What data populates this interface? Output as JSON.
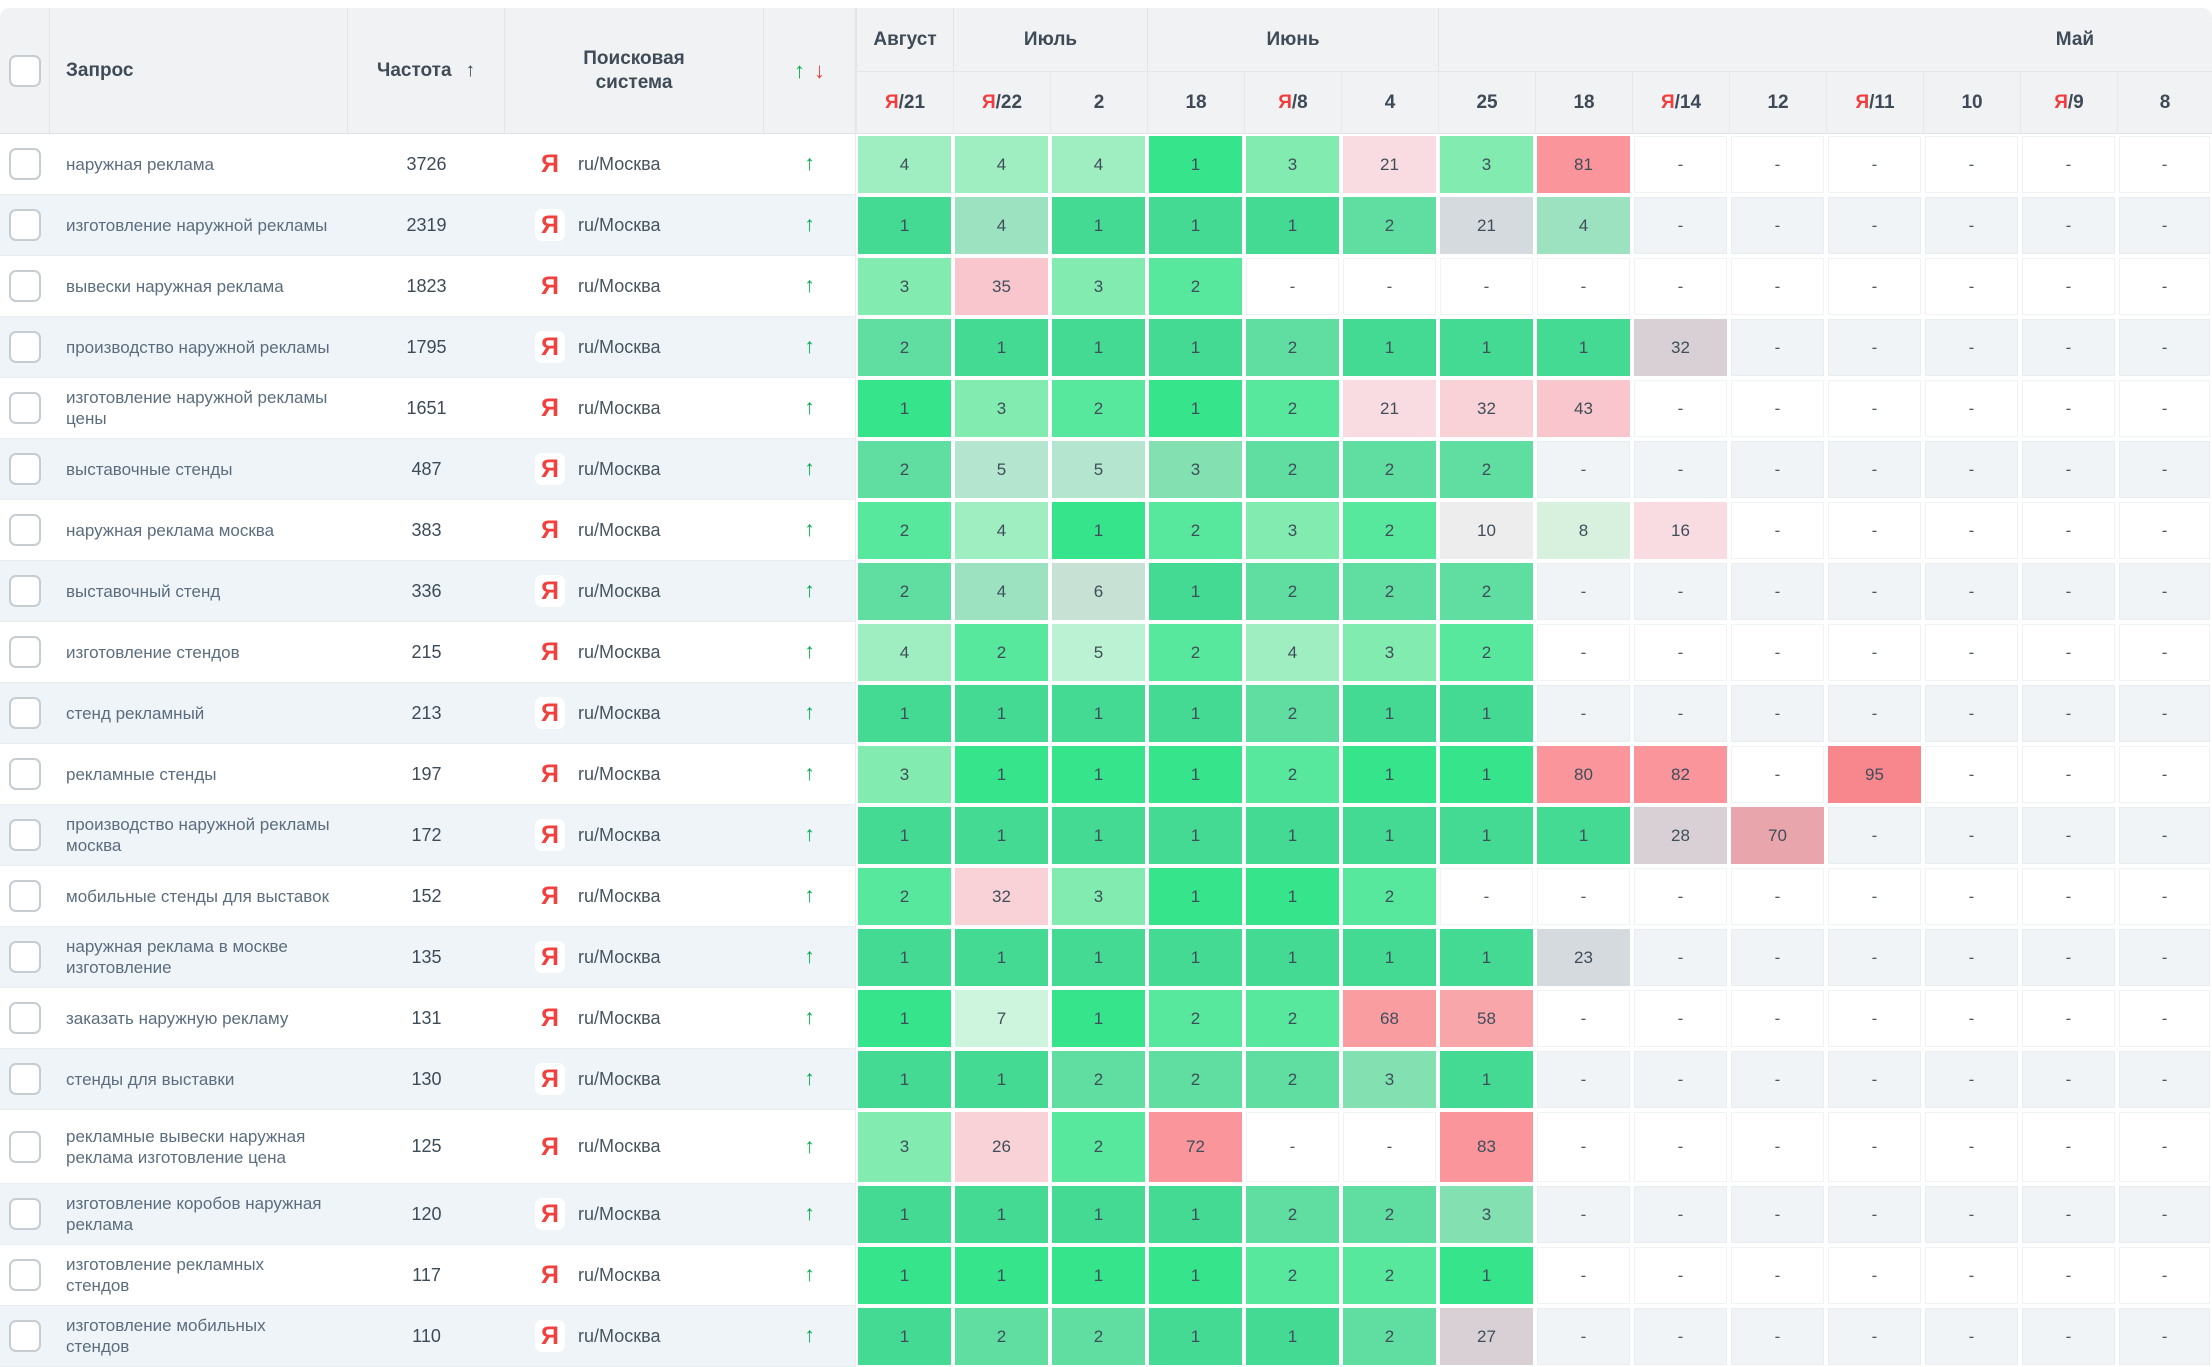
{
  "columns": {
    "query": "Запрос",
    "frequency": "Частота",
    "frequency_sort_icon": "↑",
    "engine": "Поисковая система",
    "trend_up_icon": "↑",
    "trend_down_icon": "↓"
  },
  "month_groups": [
    {
      "label": "Август",
      "span": 1
    },
    {
      "label": "Июль",
      "span": 2
    },
    {
      "label": "Июнь",
      "span": 3
    },
    {
      "label": "Май",
      "span": 8
    }
  ],
  "day_columns": [
    {
      "icon": "Я",
      "label": "/21"
    },
    {
      "icon": "Я",
      "label": "/22"
    },
    {
      "label": "2"
    },
    {
      "label": "18"
    },
    {
      "icon": "Я",
      "label": "/8"
    },
    {
      "label": "4"
    },
    {
      "label": "25"
    },
    {
      "label": "18"
    },
    {
      "icon": "Я",
      "label": "/14"
    },
    {
      "label": "12"
    },
    {
      "icon": "Я",
      "label": "/11"
    },
    {
      "label": "10"
    },
    {
      "icon": "Я",
      "label": "/9"
    },
    {
      "label": "8"
    }
  ],
  "palette": {
    "g1": "#36e48c",
    "g2": "#58e89d",
    "g3": "#81ebb0",
    "g4": "#9feec2",
    "g5": "#bbf2d3",
    "g6": "#d2ecda",
    "g7": "#cdf4dc",
    "g8": "#d8f0de",
    "g10": "#ededee",
    "gy": "#e3e4e6",
    "tp": "#e6d8d9",
    "p1": "#f9dce1",
    "p2": "#f9d2d7",
    "p3": "#f8c6cc",
    "s1": "#f9a6aa",
    "s2": "#f99da1",
    "s3": "#f9959b",
    "s4": "#f8868d"
  },
  "engine_row": {
    "icon": "Я",
    "region": "ru/Москва"
  },
  "rows": [
    {
      "query": "наружная реклама",
      "frequency": "3726",
      "trend": "up",
      "positions": [
        {
          "v": "4",
          "c": "g4"
        },
        {
          "v": "4",
          "c": "g4"
        },
        {
          "v": "4",
          "c": "g4"
        },
        {
          "v": "1",
          "c": "g1"
        },
        {
          "v": "3",
          "c": "g3"
        },
        {
          "v": "21",
          "c": "p1"
        },
        {
          "v": "3",
          "c": "g3"
        },
        {
          "v": "81",
          "c": "s3"
        },
        {
          "v": "-"
        },
        {
          "v": "-"
        },
        {
          "v": "-"
        },
        {
          "v": "-"
        },
        {
          "v": "-"
        },
        {
          "v": "-"
        }
      ]
    },
    {
      "query": "изготовление наружной рекламы",
      "frequency": "2319",
      "trend": "up",
      "positions": [
        {
          "v": "1",
          "c": "g1"
        },
        {
          "v": "4",
          "c": "g4"
        },
        {
          "v": "1",
          "c": "g1"
        },
        {
          "v": "1",
          "c": "g1"
        },
        {
          "v": "1",
          "c": "g1"
        },
        {
          "v": "2",
          "c": "g2"
        },
        {
          "v": "21",
          "c": "gy"
        },
        {
          "v": "4",
          "c": "g4"
        },
        {
          "v": "-"
        },
        {
          "v": "-"
        },
        {
          "v": "-"
        },
        {
          "v": "-"
        },
        {
          "v": "-"
        },
        {
          "v": "-"
        }
      ]
    },
    {
      "query": "вывески наружная реклама",
      "frequency": "1823",
      "trend": "up",
      "positions": [
        {
          "v": "3",
          "c": "g3"
        },
        {
          "v": "35",
          "c": "p3"
        },
        {
          "v": "3",
          "c": "g3"
        },
        {
          "v": "2",
          "c": "g2"
        },
        {
          "v": "-"
        },
        {
          "v": "-"
        },
        {
          "v": "-"
        },
        {
          "v": "-"
        },
        {
          "v": "-"
        },
        {
          "v": "-"
        },
        {
          "v": "-"
        },
        {
          "v": "-"
        },
        {
          "v": "-"
        },
        {
          "v": "-"
        }
      ]
    },
    {
      "query": "производство наружной рекламы",
      "frequency": "1795",
      "trend": "up",
      "positions": [
        {
          "v": "2",
          "c": "g2"
        },
        {
          "v": "1",
          "c": "g1"
        },
        {
          "v": "1",
          "c": "g1"
        },
        {
          "v": "1",
          "c": "g1"
        },
        {
          "v": "2",
          "c": "g2"
        },
        {
          "v": "1",
          "c": "g1"
        },
        {
          "v": "1",
          "c": "g1"
        },
        {
          "v": "1",
          "c": "g1"
        },
        {
          "v": "32",
          "c": "tp"
        },
        {
          "v": "-"
        },
        {
          "v": "-"
        },
        {
          "v": "-"
        },
        {
          "v": "-"
        },
        {
          "v": "-"
        }
      ]
    },
    {
      "query": "изготовление наружной рекламы цены",
      "frequency": "1651",
      "trend": "up",
      "positions": [
        {
          "v": "1",
          "c": "g1"
        },
        {
          "v": "3",
          "c": "g3"
        },
        {
          "v": "2",
          "c": "g2"
        },
        {
          "v": "1",
          "c": "g1"
        },
        {
          "v": "2",
          "c": "g2"
        },
        {
          "v": "21",
          "c": "p1"
        },
        {
          "v": "32",
          "c": "p2"
        },
        {
          "v": "43",
          "c": "p3"
        },
        {
          "v": "-"
        },
        {
          "v": "-"
        },
        {
          "v": "-"
        },
        {
          "v": "-"
        },
        {
          "v": "-"
        },
        {
          "v": "-"
        }
      ]
    },
    {
      "query": "выставочные стенды",
      "frequency": "487",
      "trend": "up",
      "positions": [
        {
          "v": "2",
          "c": "g2"
        },
        {
          "v": "5",
          "c": "g5"
        },
        {
          "v": "5",
          "c": "g5"
        },
        {
          "v": "3",
          "c": "g3"
        },
        {
          "v": "2",
          "c": "g2"
        },
        {
          "v": "2",
          "c": "g2"
        },
        {
          "v": "2",
          "c": "g2"
        },
        {
          "v": "-"
        },
        {
          "v": "-"
        },
        {
          "v": "-"
        },
        {
          "v": "-"
        },
        {
          "v": "-"
        },
        {
          "v": "-"
        },
        {
          "v": "-"
        }
      ]
    },
    {
      "query": "наружная реклама москва",
      "frequency": "383",
      "trend": "up",
      "positions": [
        {
          "v": "2",
          "c": "g2"
        },
        {
          "v": "4",
          "c": "g4"
        },
        {
          "v": "1",
          "c": "g1"
        },
        {
          "v": "2",
          "c": "g2"
        },
        {
          "v": "3",
          "c": "g3"
        },
        {
          "v": "2",
          "c": "g2"
        },
        {
          "v": "10",
          "c": "g10"
        },
        {
          "v": "8",
          "c": "g8"
        },
        {
          "v": "16",
          "c": "p1"
        },
        {
          "v": "-"
        },
        {
          "v": "-"
        },
        {
          "v": "-"
        },
        {
          "v": "-"
        },
        {
          "v": "-"
        }
      ]
    },
    {
      "query": "выставочный стенд",
      "frequency": "336",
      "trend": "up",
      "positions": [
        {
          "v": "2",
          "c": "g2"
        },
        {
          "v": "4",
          "c": "g4"
        },
        {
          "v": "6",
          "c": "g6"
        },
        {
          "v": "1",
          "c": "g1"
        },
        {
          "v": "2",
          "c": "g2"
        },
        {
          "v": "2",
          "c": "g2"
        },
        {
          "v": "2",
          "c": "g2"
        },
        {
          "v": "-"
        },
        {
          "v": "-"
        },
        {
          "v": "-"
        },
        {
          "v": "-"
        },
        {
          "v": "-"
        },
        {
          "v": "-"
        },
        {
          "v": "-"
        }
      ]
    },
    {
      "query": "изготовление стендов",
      "frequency": "215",
      "trend": "up",
      "positions": [
        {
          "v": "4",
          "c": "g4"
        },
        {
          "v": "2",
          "c": "g2"
        },
        {
          "v": "5",
          "c": "g5"
        },
        {
          "v": "2",
          "c": "g2"
        },
        {
          "v": "4",
          "c": "g4"
        },
        {
          "v": "3",
          "c": "g3"
        },
        {
          "v": "2",
          "c": "g2"
        },
        {
          "v": "-"
        },
        {
          "v": "-"
        },
        {
          "v": "-"
        },
        {
          "v": "-"
        },
        {
          "v": "-"
        },
        {
          "v": "-"
        },
        {
          "v": "-"
        }
      ]
    },
    {
      "query": "стенд рекламный",
      "frequency": "213",
      "trend": "up",
      "positions": [
        {
          "v": "1",
          "c": "g1"
        },
        {
          "v": "1",
          "c": "g1"
        },
        {
          "v": "1",
          "c": "g1"
        },
        {
          "v": "1",
          "c": "g1"
        },
        {
          "v": "2",
          "c": "g2"
        },
        {
          "v": "1",
          "c": "g1"
        },
        {
          "v": "1",
          "c": "g1"
        },
        {
          "v": "-"
        },
        {
          "v": "-"
        },
        {
          "v": "-"
        },
        {
          "v": "-"
        },
        {
          "v": "-"
        },
        {
          "v": "-"
        },
        {
          "v": "-"
        }
      ]
    },
    {
      "query": "рекламные стенды",
      "frequency": "197",
      "trend": "up",
      "positions": [
        {
          "v": "3",
          "c": "g3"
        },
        {
          "v": "1",
          "c": "g1"
        },
        {
          "v": "1",
          "c": "g1"
        },
        {
          "v": "1",
          "c": "g1"
        },
        {
          "v": "2",
          "c": "g2"
        },
        {
          "v": "1",
          "c": "g1"
        },
        {
          "v": "1",
          "c": "g1"
        },
        {
          "v": "80",
          "c": "s3"
        },
        {
          "v": "82",
          "c": "s3"
        },
        {
          "v": "-"
        },
        {
          "v": "95",
          "c": "s4"
        },
        {
          "v": "-"
        },
        {
          "v": "-"
        },
        {
          "v": "-"
        }
      ]
    },
    {
      "query": "производство наружной рекламы москва",
      "frequency": "172",
      "trend": "up",
      "positions": [
        {
          "v": "1",
          "c": "g1"
        },
        {
          "v": "1",
          "c": "g1"
        },
        {
          "v": "1",
          "c": "g1"
        },
        {
          "v": "1",
          "c": "g1"
        },
        {
          "v": "1",
          "c": "g1"
        },
        {
          "v": "1",
          "c": "g1"
        },
        {
          "v": "1",
          "c": "g1"
        },
        {
          "v": "1",
          "c": "g1"
        },
        {
          "v": "28",
          "c": "tp"
        },
        {
          "v": "70",
          "c": "s1"
        },
        {
          "v": "-"
        },
        {
          "v": "-"
        },
        {
          "v": "-"
        },
        {
          "v": "-"
        }
      ]
    },
    {
      "query": "мобильные стенды для выставок",
      "frequency": "152",
      "trend": "up",
      "positions": [
        {
          "v": "2",
          "c": "g2"
        },
        {
          "v": "32",
          "c": "p2"
        },
        {
          "v": "3",
          "c": "g3"
        },
        {
          "v": "1",
          "c": "g1"
        },
        {
          "v": "1",
          "c": "g1"
        },
        {
          "v": "2",
          "c": "g2"
        },
        {
          "v": "-"
        },
        {
          "v": "-"
        },
        {
          "v": "-"
        },
        {
          "v": "-"
        },
        {
          "v": "-"
        },
        {
          "v": "-"
        },
        {
          "v": "-"
        },
        {
          "v": "-"
        }
      ]
    },
    {
      "query": "наружная реклама в москве изготовление",
      "frequency": "135",
      "trend": "up",
      "positions": [
        {
          "v": "1",
          "c": "g1"
        },
        {
          "v": "1",
          "c": "g1"
        },
        {
          "v": "1",
          "c": "g1"
        },
        {
          "v": "1",
          "c": "g1"
        },
        {
          "v": "1",
          "c": "g1"
        },
        {
          "v": "1",
          "c": "g1"
        },
        {
          "v": "1",
          "c": "g1"
        },
        {
          "v": "23",
          "c": "gy"
        },
        {
          "v": "-"
        },
        {
          "v": "-"
        },
        {
          "v": "-"
        },
        {
          "v": "-"
        },
        {
          "v": "-"
        },
        {
          "v": "-"
        }
      ]
    },
    {
      "query": "заказать наружную рекламу",
      "frequency": "131",
      "trend": "up",
      "positions": [
        {
          "v": "1",
          "c": "g1"
        },
        {
          "v": "7",
          "c": "g7"
        },
        {
          "v": "1",
          "c": "g1"
        },
        {
          "v": "2",
          "c": "g2"
        },
        {
          "v": "2",
          "c": "g2"
        },
        {
          "v": "68",
          "c": "s2"
        },
        {
          "v": "58",
          "c": "s1"
        },
        {
          "v": "-"
        },
        {
          "v": "-"
        },
        {
          "v": "-"
        },
        {
          "v": "-"
        },
        {
          "v": "-"
        },
        {
          "v": "-"
        },
        {
          "v": "-"
        }
      ]
    },
    {
      "query": "стенды для выставки",
      "frequency": "130",
      "trend": "up",
      "positions": [
        {
          "v": "1",
          "c": "g1"
        },
        {
          "v": "1",
          "c": "g1"
        },
        {
          "v": "2",
          "c": "g2"
        },
        {
          "v": "2",
          "c": "g2"
        },
        {
          "v": "2",
          "c": "g2"
        },
        {
          "v": "3",
          "c": "g3"
        },
        {
          "v": "1",
          "c": "g1"
        },
        {
          "v": "-"
        },
        {
          "v": "-"
        },
        {
          "v": "-"
        },
        {
          "v": "-"
        },
        {
          "v": "-"
        },
        {
          "v": "-"
        },
        {
          "v": "-"
        }
      ]
    },
    {
      "query": "рекламные вывески наружная реклама изготовление цена",
      "frequency": "125",
      "trend": "up",
      "tall": true,
      "positions": [
        {
          "v": "3",
          "c": "g3"
        },
        {
          "v": "26",
          "c": "p2"
        },
        {
          "v": "2",
          "c": "g2"
        },
        {
          "v": "72",
          "c": "s3"
        },
        {
          "v": "-"
        },
        {
          "v": "-"
        },
        {
          "v": "83",
          "c": "s3"
        },
        {
          "v": "-"
        },
        {
          "v": "-"
        },
        {
          "v": "-"
        },
        {
          "v": "-"
        },
        {
          "v": "-"
        },
        {
          "v": "-"
        },
        {
          "v": "-"
        }
      ]
    },
    {
      "query": "изготовление коробов наружная реклама",
      "frequency": "120",
      "trend": "up",
      "positions": [
        {
          "v": "1",
          "c": "g1"
        },
        {
          "v": "1",
          "c": "g1"
        },
        {
          "v": "1",
          "c": "g1"
        },
        {
          "v": "1",
          "c": "g1"
        },
        {
          "v": "2",
          "c": "g2"
        },
        {
          "v": "2",
          "c": "g2"
        },
        {
          "v": "3",
          "c": "g3"
        },
        {
          "v": "-"
        },
        {
          "v": "-"
        },
        {
          "v": "-"
        },
        {
          "v": "-"
        },
        {
          "v": "-"
        },
        {
          "v": "-"
        },
        {
          "v": "-"
        }
      ]
    },
    {
      "query": "изготовление рекламных стендов",
      "frequency": "117",
      "trend": "up",
      "positions": [
        {
          "v": "1",
          "c": "g1"
        },
        {
          "v": "1",
          "c": "g1"
        },
        {
          "v": "1",
          "c": "g1"
        },
        {
          "v": "1",
          "c": "g1"
        },
        {
          "v": "2",
          "c": "g2"
        },
        {
          "v": "2",
          "c": "g2"
        },
        {
          "v": "1",
          "c": "g1"
        },
        {
          "v": "-"
        },
        {
          "v": "-"
        },
        {
          "v": "-"
        },
        {
          "v": "-"
        },
        {
          "v": "-"
        },
        {
          "v": "-"
        },
        {
          "v": "-"
        }
      ]
    },
    {
      "query": "изготовление мобильных стендов",
      "frequency": "110",
      "trend": "up",
      "positions": [
        {
          "v": "1",
          "c": "g1"
        },
        {
          "v": "2",
          "c": "g2"
        },
        {
          "v": "2",
          "c": "g2"
        },
        {
          "v": "1",
          "c": "g1"
        },
        {
          "v": "1",
          "c": "g1"
        },
        {
          "v": "2",
          "c": "g2"
        },
        {
          "v": "27",
          "c": "tp"
        },
        {
          "v": "-"
        },
        {
          "v": "-"
        },
        {
          "v": "-"
        },
        {
          "v": "-"
        },
        {
          "v": "-"
        },
        {
          "v": "-"
        },
        {
          "v": "-"
        }
      ]
    }
  ]
}
